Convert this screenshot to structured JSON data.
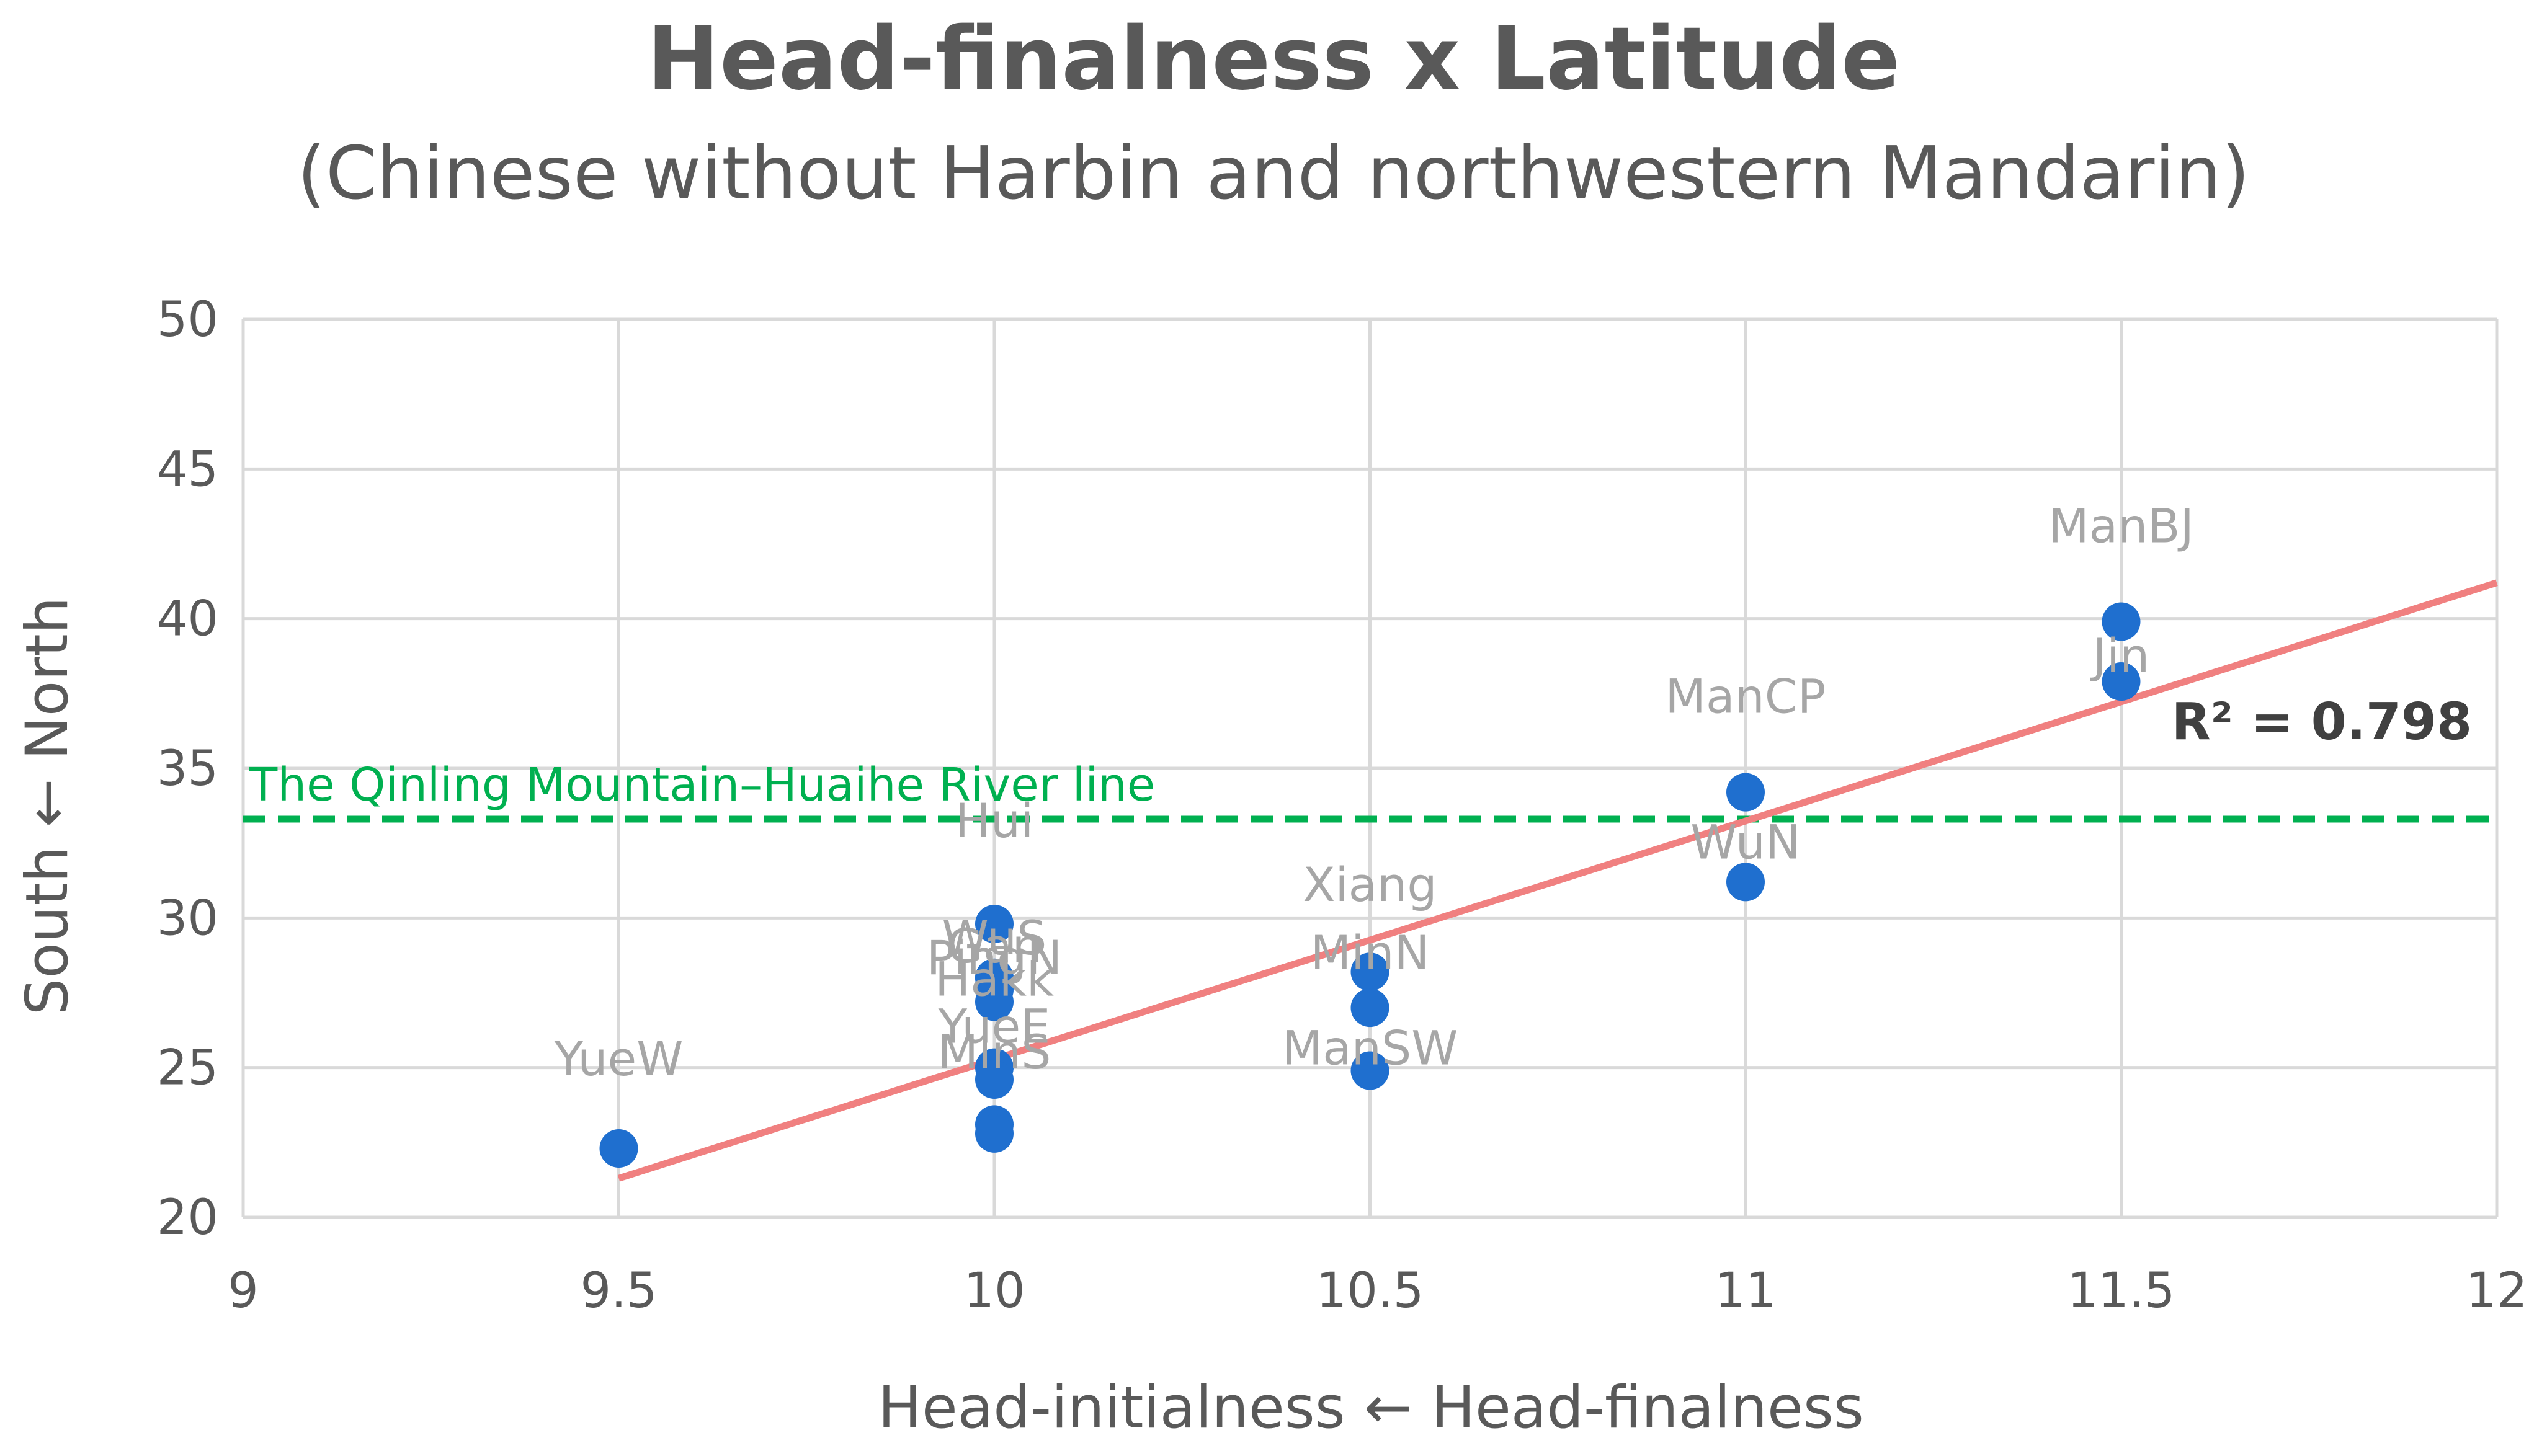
{
  "chart_data": {
    "type": "scatter",
    "title": "Head-finalness x Latitude",
    "subtitle": "(Chinese without Harbin and northwestern Mandarin)",
    "xlabel": "Head-initialness ← Head-finalness",
    "ylabel": "South ← North",
    "xlim": [
      9,
      12
    ],
    "ylim": [
      20,
      50
    ],
    "xticks": [
      "9",
      "9.5",
      "10",
      "10.5",
      "11",
      "11.5",
      "12"
    ],
    "yticks": [
      "20",
      "25",
      "30",
      "35",
      "40",
      "45",
      "50"
    ],
    "grid": true,
    "marker_color": "#1f6fcf",
    "points": [
      {
        "x": 9.5,
        "y": 22.3,
        "label": "YueW"
      },
      {
        "x": 10,
        "y": 29.8,
        "label": "Hui"
      },
      {
        "x": 10,
        "y": 28.0,
        "label": "WuS"
      },
      {
        "x": 10,
        "y": 28.0,
        "label": "Gan"
      },
      {
        "x": 10,
        "y": 27.6,
        "label": "PingN"
      },
      {
        "x": 10,
        "y": 27.2,
        "label": "Hakk"
      },
      {
        "x": 10,
        "y": 25.0,
        "label": "YueE"
      },
      {
        "x": 10,
        "y": 24.6,
        "label": "MinS"
      },
      {
        "x": 10,
        "y": 23.1,
        "label": ""
      },
      {
        "x": 10,
        "y": 22.8,
        "label": ""
      },
      {
        "x": 10.5,
        "y": 28.2,
        "label": "Xiang"
      },
      {
        "x": 10.5,
        "y": 27.0,
        "label": "MinN"
      },
      {
        "x": 10.5,
        "y": 24.9,
        "label": "ManSW"
      },
      {
        "x": 11,
        "y": 34.2,
        "label": "ManCP"
      },
      {
        "x": 11,
        "y": 31.2,
        "label": "WuN"
      },
      {
        "x": 11.5,
        "y": 39.9,
        "label": "ManBJ"
      },
      {
        "x": 11.5,
        "y": 37.9,
        "label": "Jin"
      }
    ],
    "trendline": {
      "type": "linear",
      "color": "#f08080",
      "x_start": 9.5,
      "y_start": 21.3,
      "x_end": 12,
      "y_end": 41.2,
      "r2_label": "R² = 0.798"
    },
    "reference_line": {
      "y": 33.3,
      "color": "#00b050",
      "style": "dashed",
      "label": "The Qinling Mountain–Huaihe River line"
    }
  }
}
